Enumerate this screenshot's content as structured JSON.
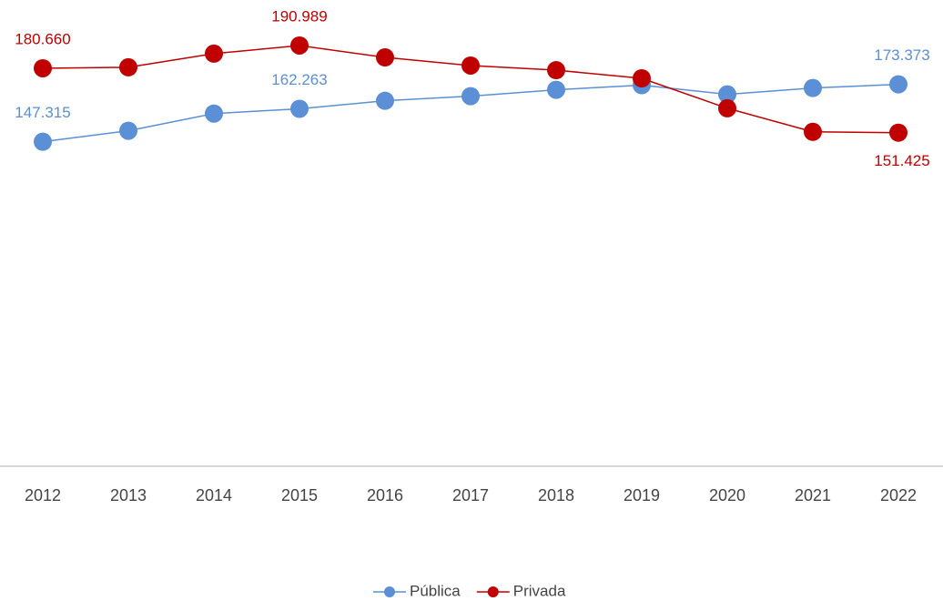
{
  "chart_data": {
    "type": "line",
    "categories": [
      "2012",
      "2013",
      "2014",
      "2015",
      "2016",
      "2017",
      "2018",
      "2019",
      "2020",
      "2021",
      "2022"
    ],
    "series": [
      {
        "name": "Pública",
        "color": "#5b8fd6",
        "values": [
          147.315,
          152.3,
          160.1,
          162.263,
          165.9,
          168.0,
          170.9,
          173.0,
          168.8,
          171.7,
          173.373
        ],
        "value_labels": [
          "147.315",
          null,
          null,
          "162.263",
          null,
          null,
          null,
          null,
          null,
          null,
          "173.373"
        ]
      },
      {
        "name": "Privada",
        "color": "#c00000",
        "values": [
          180.66,
          181.1,
          187.3,
          190.989,
          185.6,
          181.9,
          179.8,
          176.1,
          162.5,
          151.8,
          151.425
        ],
        "value_labels": [
          "180.660",
          null,
          null,
          "190.989",
          null,
          null,
          null,
          null,
          null,
          null,
          "151.425"
        ]
      }
    ],
    "ylim": [
      0,
      210
    ],
    "legend": "bottom"
  }
}
